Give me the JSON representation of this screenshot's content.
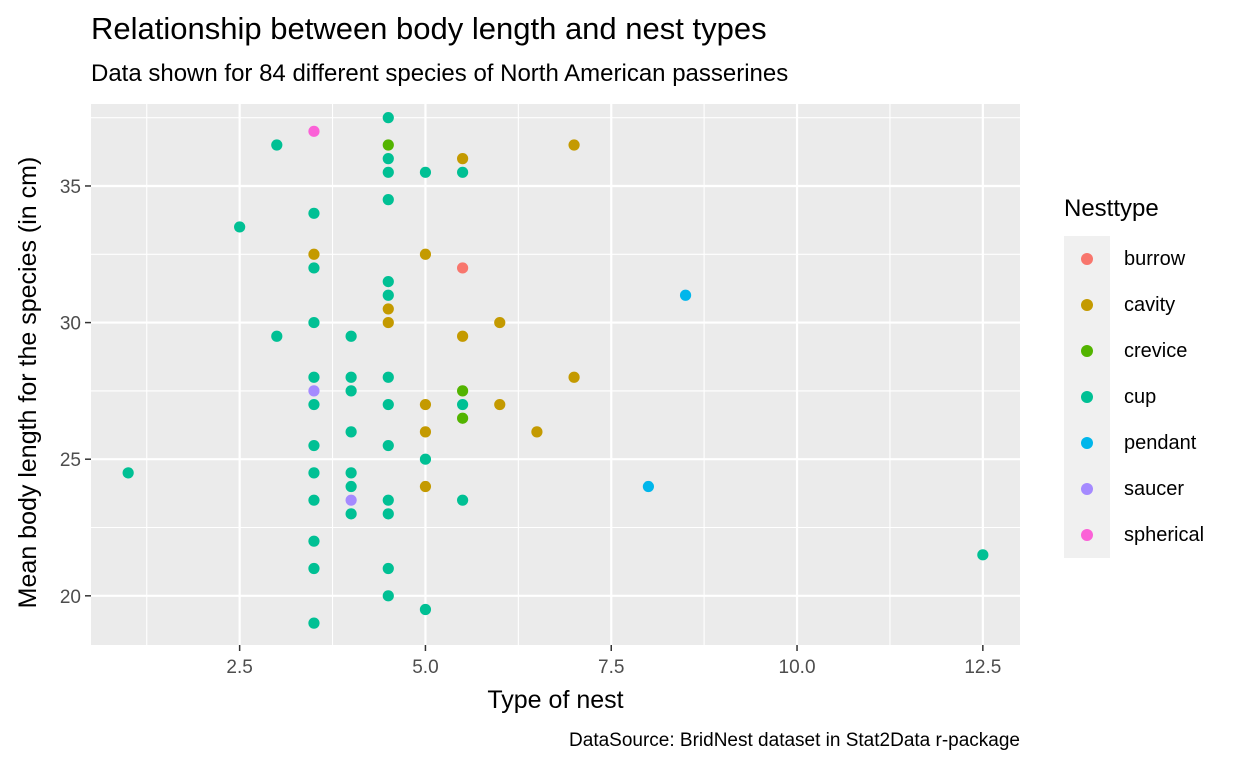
{
  "chart_data": {
    "type": "scatter",
    "title": "Relationship between body length and nest types",
    "subtitle": "Data shown for 84 different species of North American passerines",
    "caption": "DataSource: BridNest dataset in Stat2Data r-package",
    "xlabel": "Type of nest",
    "ylabel": "Mean body length for the species (in cm)",
    "xlim": [
      0.5,
      13.0
    ],
    "ylim": [
      18.2,
      38.0
    ],
    "x_ticks": [
      {
        "value": 2.5,
        "label": "2.5"
      },
      {
        "value": 5.0,
        "label": "5.0"
      },
      {
        "value": 7.5,
        "label": "7.5"
      },
      {
        "value": 10.0,
        "label": "10.0"
      },
      {
        "value": 12.5,
        "label": "12.5"
      }
    ],
    "y_ticks": [
      {
        "value": 20,
        "label": "20"
      },
      {
        "value": 25,
        "label": "25"
      },
      {
        "value": 30,
        "label": "30"
      },
      {
        "value": 35,
        "label": "35"
      }
    ],
    "grid": true,
    "legend_title": "Nesttype",
    "legend_position": "right",
    "series": [
      {
        "name": "burrow",
        "color": "#F8766D",
        "points": [
          [
            5.5,
            32.0
          ]
        ]
      },
      {
        "name": "cavity",
        "color": "#C49A00",
        "points": [
          [
            3.5,
            32.5
          ],
          [
            4.5,
            30.5
          ],
          [
            4.5,
            30.0
          ],
          [
            5.0,
            32.5
          ],
          [
            5.0,
            27.0
          ],
          [
            5.0,
            26.0
          ],
          [
            5.0,
            24.0
          ],
          [
            5.5,
            36.0
          ],
          [
            5.5,
            29.5
          ],
          [
            6.0,
            30.0
          ],
          [
            6.0,
            27.0
          ],
          [
            6.5,
            26.0
          ],
          [
            7.0,
            36.5
          ],
          [
            7.0,
            28.0
          ]
        ]
      },
      {
        "name": "crevice",
        "color": "#53B400",
        "points": [
          [
            4.5,
            36.5
          ],
          [
            5.5,
            27.5
          ],
          [
            5.5,
            26.5
          ]
        ]
      },
      {
        "name": "cup",
        "color": "#00C094",
        "points": [
          [
            1.0,
            24.5
          ],
          [
            2.5,
            33.5
          ],
          [
            3.0,
            36.5
          ],
          [
            3.0,
            29.5
          ],
          [
            3.5,
            34.0
          ],
          [
            3.5,
            32.0
          ],
          [
            3.5,
            30.0
          ],
          [
            3.5,
            28.0
          ],
          [
            3.5,
            27.0
          ],
          [
            3.5,
            25.5
          ],
          [
            3.5,
            24.5
          ],
          [
            3.5,
            23.5
          ],
          [
            3.5,
            22.0
          ],
          [
            3.5,
            21.0
          ],
          [
            3.5,
            19.0
          ],
          [
            4.0,
            29.5
          ],
          [
            4.0,
            28.0
          ],
          [
            4.0,
            27.5
          ],
          [
            4.0,
            26.0
          ],
          [
            4.0,
            24.5
          ],
          [
            4.0,
            24.0
          ],
          [
            4.0,
            23.0
          ],
          [
            4.5,
            37.5
          ],
          [
            4.5,
            36.0
          ],
          [
            4.5,
            35.5
          ],
          [
            4.5,
            34.5
          ],
          [
            4.5,
            31.5
          ],
          [
            4.5,
            31.0
          ],
          [
            4.5,
            28.0
          ],
          [
            4.5,
            27.0
          ],
          [
            4.5,
            25.5
          ],
          [
            4.5,
            23.5
          ],
          [
            4.5,
            23.0
          ],
          [
            4.5,
            21.0
          ],
          [
            4.5,
            20.0
          ],
          [
            5.0,
            35.5
          ],
          [
            5.0,
            25.0
          ],
          [
            5.0,
            19.5
          ],
          [
            5.5,
            35.5
          ],
          [
            5.5,
            27.0
          ],
          [
            5.5,
            23.5
          ],
          [
            12.5,
            21.5
          ]
        ]
      },
      {
        "name": "pendant",
        "color": "#00B6EB",
        "points": [
          [
            8.5,
            31.0
          ],
          [
            8.0,
            24.0
          ]
        ]
      },
      {
        "name": "saucer",
        "color": "#A58AFF",
        "points": [
          [
            3.5,
            27.5
          ],
          [
            4.0,
            23.5
          ]
        ]
      },
      {
        "name": "spherical",
        "color": "#FB61D7",
        "points": [
          [
            3.5,
            37.0
          ]
        ]
      }
    ]
  }
}
